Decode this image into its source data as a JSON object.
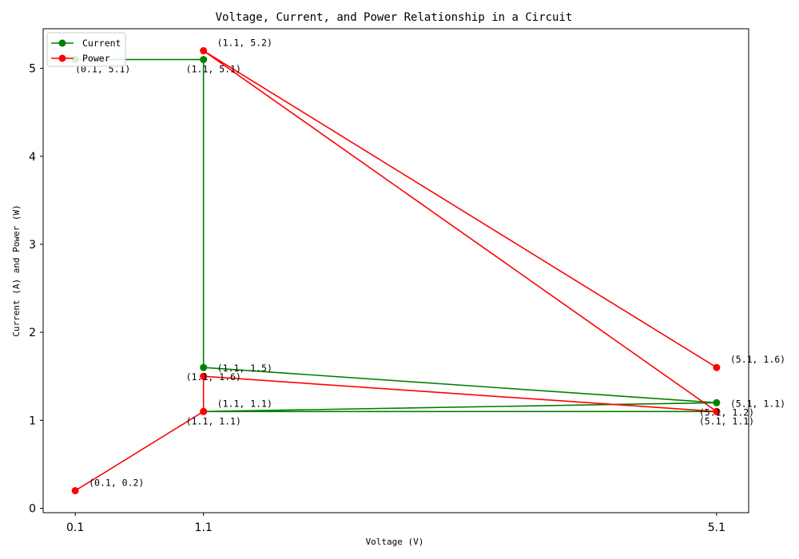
{
  "chart_data": {
    "type": "line",
    "title": "Voltage, Current, and Power Relationship in a Circuit",
    "xlabel": "Voltage (V)",
    "ylabel": "Current (A) and Power (W)",
    "x_ticks": [
      "0.1",
      "1.1",
      "5.1"
    ],
    "x_tick_values": [
      0.1,
      1.1,
      5.1
    ],
    "y_ticks": [
      "0",
      "1",
      "2",
      "3",
      "4",
      "5"
    ],
    "y_tick_values": [
      0,
      1,
      2,
      3,
      4,
      5
    ],
    "xlim": [
      -0.15,
      5.35
    ],
    "ylim": [
      -0.05,
      5.45
    ],
    "grid": false,
    "legend_position": "top-left",
    "series": [
      {
        "name": "Current",
        "color": "#008000",
        "x": [
          0.1,
          1.1,
          1.1,
          5.1,
          1.1,
          5.1
        ],
        "y": [
          5.1,
          5.1,
          1.6,
          1.2,
          1.1,
          1.1
        ]
      },
      {
        "name": "Power",
        "color": "#ff0000",
        "x": [
          0.1,
          1.1,
          1.1,
          5.1,
          1.1,
          5.1
        ],
        "y": [
          0.2,
          1.1,
          1.5,
          1.1,
          5.2,
          1.6
        ]
      }
    ],
    "annotations": [
      {
        "text": "(0.1, 5.1)",
        "x": 0.1,
        "y": 5.1,
        "dx": 0,
        "dy": -12
      },
      {
        "text": "(1.1, 5.1)",
        "x": 1.1,
        "y": 5.1,
        "dx": -22,
        "dy": -12
      },
      {
        "text": "(1.1, 1.6)",
        "x": 1.1,
        "y": 1.6,
        "dx": -22,
        "dy": -12
      },
      {
        "text": "(5.1, 1.2)",
        "x": 5.1,
        "y": 1.2,
        "dx": -22,
        "dy": -12
      },
      {
        "text": "(1.1, 1.1)",
        "x": 1.1,
        "y": 1.1,
        "dx": -22,
        "dy": -12
      },
      {
        "text": "(5.1, 1.1)",
        "x": 5.1,
        "y": 1.1,
        "dx": -22,
        "dy": -12
      },
      {
        "text": "(0.1, 0.2)",
        "x": 0.1,
        "y": 0.2,
        "dx": 17,
        "dy": 10
      },
      {
        "text": "(1.1, 1.1)",
        "x": 1.1,
        "y": 1.1,
        "dx": 17,
        "dy": 10
      },
      {
        "text": "(1.1, 1.5)",
        "x": 1.1,
        "y": 1.5,
        "dx": 17,
        "dy": 10
      },
      {
        "text": "(5.1, 1.1)",
        "x": 5.1,
        "y": 1.1,
        "dx": 17,
        "dy": 10
      },
      {
        "text": "(1.1, 5.2)",
        "x": 1.1,
        "y": 5.2,
        "dx": 17,
        "dy": 10
      },
      {
        "text": "(5.1, 1.6)",
        "x": 5.1,
        "y": 1.6,
        "dx": 17,
        "dy": 10
      }
    ]
  }
}
